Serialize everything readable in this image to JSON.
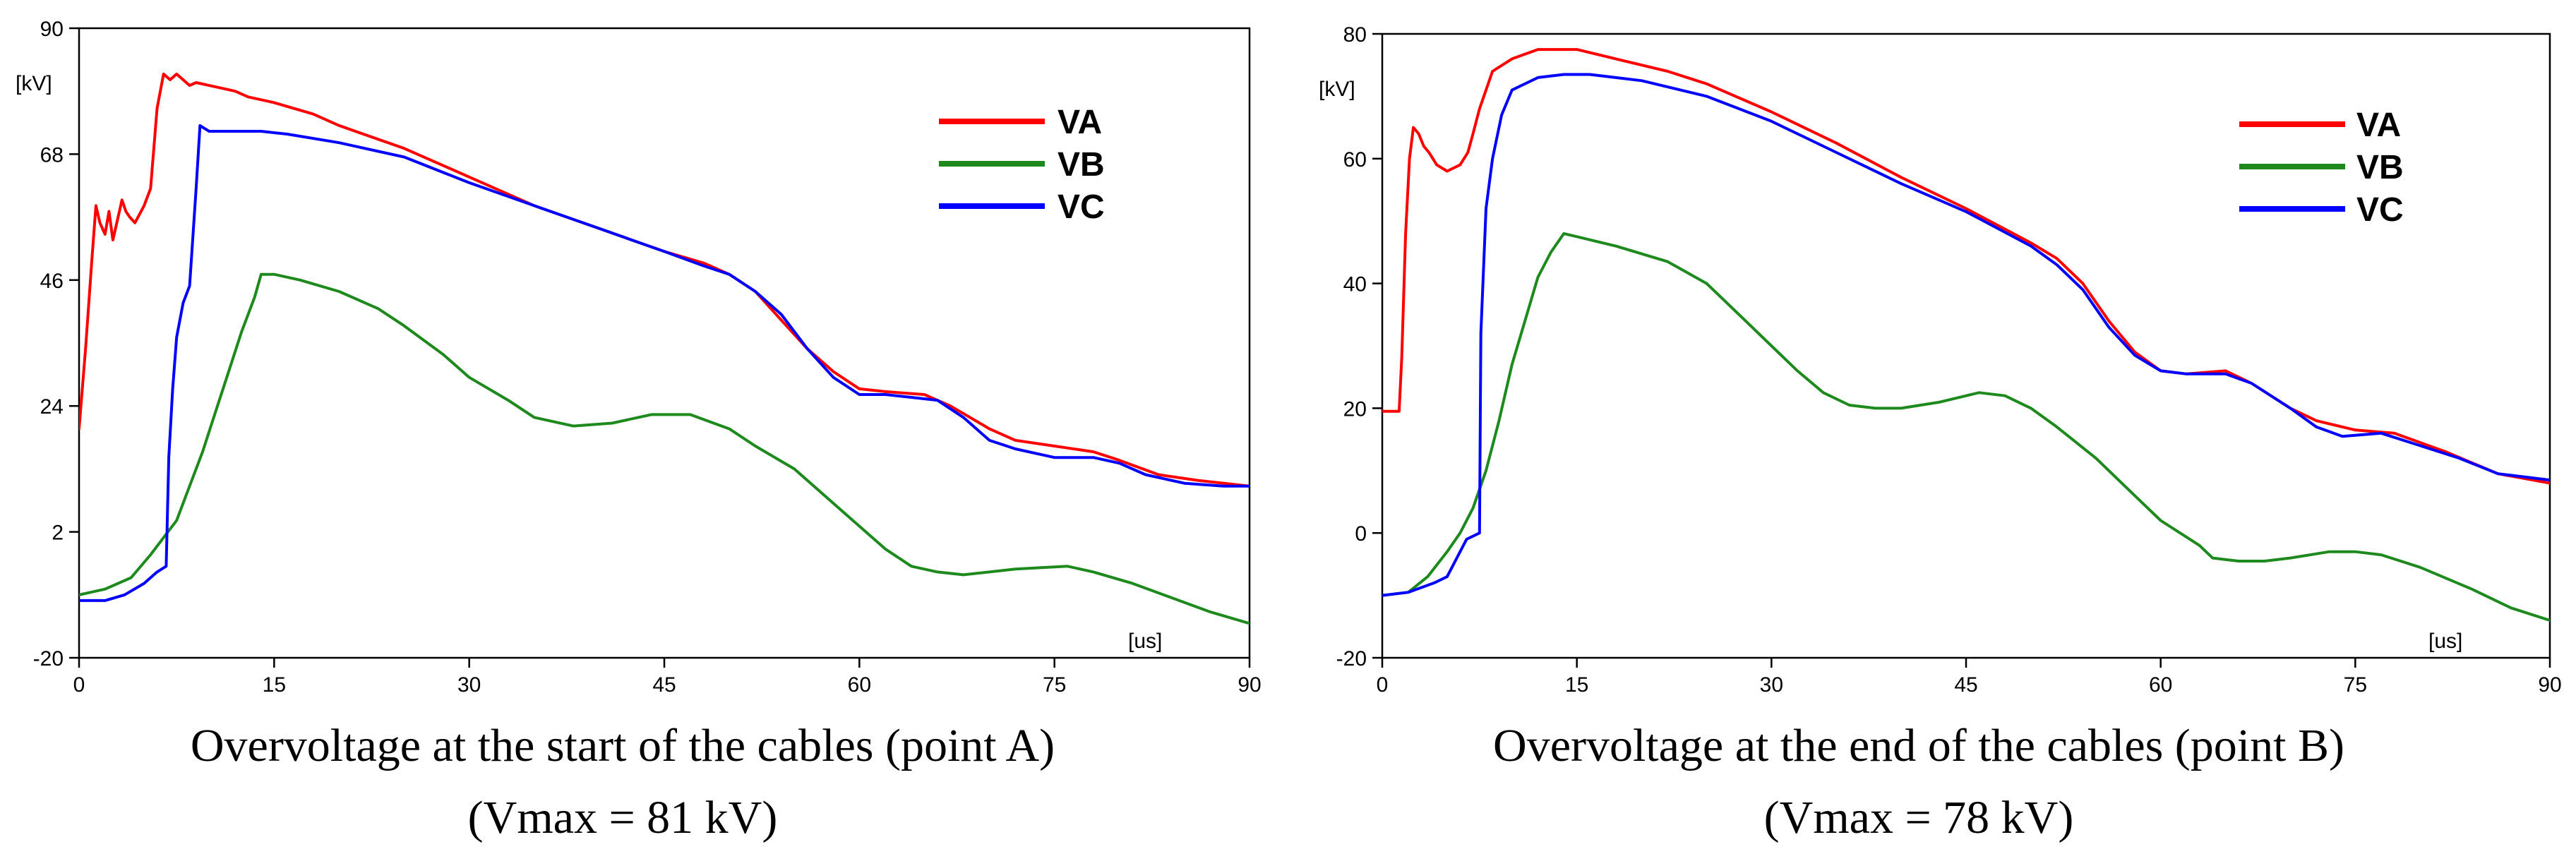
{
  "chart_data": [
    {
      "type": "line",
      "title": "Overvoltage at the start of the cables (point A)",
      "subtitle": "(Vmax = 81 kV)",
      "xlabel": "[us]",
      "ylabel": "[kV]",
      "xlim": [
        0,
        90
      ],
      "ylim": [
        -20,
        90
      ],
      "xticks": [
        0,
        15,
        30,
        45,
        60,
        75,
        90
      ],
      "yticks": [
        -20,
        2,
        24,
        46,
        68,
        90
      ],
      "grid": false,
      "legend_position": "top-right",
      "series": [
        {
          "name": "VA",
          "color": "#ff0000",
          "points": [
            [
              0,
              20
            ],
            [
              0.5,
              34
            ],
            [
              1,
              50
            ],
            [
              1.3,
              59
            ],
            [
              1.6,
              56
            ],
            [
              2,
              54
            ],
            [
              2.3,
              58
            ],
            [
              2.6,
              53
            ],
            [
              3,
              57
            ],
            [
              3.3,
              60
            ],
            [
              3.6,
              58
            ],
            [
              3.9,
              57
            ],
            [
              4.3,
              56
            ],
            [
              5,
              59
            ],
            [
              5.5,
              62
            ],
            [
              6,
              76
            ],
            [
              6.5,
              82
            ],
            [
              7,
              81
            ],
            [
              7.5,
              82
            ],
            [
              8,
              81
            ],
            [
              8.5,
              80
            ],
            [
              9,
              80.5
            ],
            [
              10,
              80
            ],
            [
              11,
              79.5
            ],
            [
              12,
              79
            ],
            [
              13,
              78
            ],
            [
              15,
              77
            ],
            [
              18,
              75
            ],
            [
              20,
              73
            ],
            [
              25,
              69
            ],
            [
              30,
              64
            ],
            [
              35,
              59
            ],
            [
              40,
              55
            ],
            [
              45,
              51
            ],
            [
              48,
              49
            ],
            [
              50,
              47
            ],
            [
              52,
              44
            ],
            [
              54,
              39
            ],
            [
              56,
              34
            ],
            [
              58,
              30
            ],
            [
              60,
              27
            ],
            [
              62,
              26.5
            ],
            [
              65,
              26
            ],
            [
              67,
              24
            ],
            [
              70,
              20
            ],
            [
              72,
              18
            ],
            [
              75,
              17
            ],
            [
              78,
              16
            ],
            [
              80,
              14.5
            ],
            [
              83,
              12
            ],
            [
              86,
              11
            ],
            [
              90,
              10
            ]
          ]
        },
        {
          "name": "VB",
          "color": "#1e8a1e",
          "points": [
            [
              0,
              -9
            ],
            [
              2,
              -8
            ],
            [
              4,
              -6
            ],
            [
              5.5,
              -2
            ],
            [
              6.5,
              1
            ],
            [
              7.5,
              4
            ],
            [
              8.5,
              10
            ],
            [
              9.5,
              16
            ],
            [
              10.5,
              23
            ],
            [
              11.5,
              30
            ],
            [
              12.5,
              37
            ],
            [
              13.5,
              43
            ],
            [
              14,
              47
            ],
            [
              15,
              47
            ],
            [
              17,
              46
            ],
            [
              20,
              44
            ],
            [
              23,
              41
            ],
            [
              25,
              38
            ],
            [
              28,
              33
            ],
            [
              30,
              29
            ],
            [
              33,
              25
            ],
            [
              35,
              22
            ],
            [
              38,
              20.5
            ],
            [
              41,
              21
            ],
            [
              44,
              22.5
            ],
            [
              47,
              22.5
            ],
            [
              50,
              20
            ],
            [
              52,
              17
            ],
            [
              55,
              13
            ],
            [
              58,
              7
            ],
            [
              60,
              3
            ],
            [
              62,
              -1
            ],
            [
              64,
              -4
            ],
            [
              66,
              -5
            ],
            [
              68,
              -5.5
            ],
            [
              72,
              -4.5
            ],
            [
              76,
              -4
            ],
            [
              78,
              -5
            ],
            [
              81,
              -7
            ],
            [
              84,
              -9.5
            ],
            [
              87,
              -12
            ],
            [
              90,
              -14
            ]
          ]
        },
        {
          "name": "VC",
          "color": "#0000ff",
          "points": [
            [
              0,
              -10
            ],
            [
              2,
              -10
            ],
            [
              3.5,
              -9
            ],
            [
              5,
              -7
            ],
            [
              6,
              -5
            ],
            [
              6.7,
              -4
            ],
            [
              6.9,
              15
            ],
            [
              7.2,
              27
            ],
            [
              7.5,
              36
            ],
            [
              8,
              42
            ],
            [
              8.5,
              45
            ],
            [
              9,
              62
            ],
            [
              9.3,
              73
            ],
            [
              10,
              72
            ],
            [
              12,
              72
            ],
            [
              14,
              72
            ],
            [
              16,
              71.5
            ],
            [
              20,
              70
            ],
            [
              25,
              67.5
            ],
            [
              30,
              63
            ],
            [
              35,
              59
            ],
            [
              40,
              55
            ],
            [
              45,
              51
            ],
            [
              48,
              48.5
            ],
            [
              50,
              47
            ],
            [
              52,
              44
            ],
            [
              54,
              40
            ],
            [
              56,
              34
            ],
            [
              58,
              29
            ],
            [
              60,
              26
            ],
            [
              62,
              26
            ],
            [
              64,
              25.5
            ],
            [
              66,
              25
            ],
            [
              68,
              22
            ],
            [
              70,
              18
            ],
            [
              72,
              16.5
            ],
            [
              75,
              15
            ],
            [
              78,
              15
            ],
            [
              80,
              14
            ],
            [
              82,
              12
            ],
            [
              85,
              10.5
            ],
            [
              88,
              10
            ],
            [
              90,
              10
            ]
          ]
        }
      ]
    },
    {
      "type": "line",
      "title": "Overvoltage at the end of the cables (point B)",
      "subtitle": "(Vmax = 78 kV)",
      "xlabel": "[us]",
      "ylabel": "[kV]",
      "xlim": [
        0,
        90
      ],
      "ylim": [
        -20,
        80
      ],
      "xticks": [
        0,
        15,
        30,
        45,
        60,
        75,
        90
      ],
      "yticks": [
        -20,
        0,
        20,
        40,
        60,
        80
      ],
      "grid": false,
      "legend_position": "top-right",
      "series": [
        {
          "name": "VA",
          "color": "#ff0000",
          "points": [
            [
              0,
              19.5
            ],
            [
              1.3,
              19.5
            ],
            [
              1.5,
              28
            ],
            [
              1.8,
              48
            ],
            [
              2.1,
              60
            ],
            [
              2.4,
              65
            ],
            [
              2.8,
              64
            ],
            [
              3.2,
              62
            ],
            [
              3.6,
              61
            ],
            [
              4.2,
              59
            ],
            [
              5,
              58
            ],
            [
              6,
              59
            ],
            [
              6.6,
              61
            ],
            [
              7,
              64
            ],
            [
              7.5,
              68
            ],
            [
              8,
              71
            ],
            [
              8.5,
              74
            ],
            [
              10,
              76
            ],
            [
              12,
              77.5
            ],
            [
              14,
              77.5
            ],
            [
              15,
              77.5
            ],
            [
              18,
              76
            ],
            [
              22,
              74
            ],
            [
              25,
              72
            ],
            [
              30,
              67.5
            ],
            [
              35,
              62.5
            ],
            [
              40,
              57
            ],
            [
              45,
              52
            ],
            [
              50,
              46.5
            ],
            [
              52,
              44
            ],
            [
              54,
              40
            ],
            [
              56,
              34
            ],
            [
              58,
              29
            ],
            [
              60,
              26
            ],
            [
              62,
              25.5
            ],
            [
              65,
              26
            ],
            [
              67,
              24
            ],
            [
              70,
              20
            ],
            [
              72,
              18
            ],
            [
              75,
              16.5
            ],
            [
              78,
              16
            ],
            [
              82,
              13
            ],
            [
              86,
              9.5
            ],
            [
              90,
              8
            ]
          ]
        },
        {
          "name": "VB",
          "color": "#1e8a1e",
          "points": [
            [
              0,
              -10
            ],
            [
              2,
              -9.5
            ],
            [
              3.5,
              -7
            ],
            [
              5,
              -3
            ],
            [
              6,
              0
            ],
            [
              7,
              4
            ],
            [
              8,
              10
            ],
            [
              9,
              18
            ],
            [
              10,
              27
            ],
            [
              11,
              34
            ],
            [
              12,
              41
            ],
            [
              13,
              45
            ],
            [
              14,
              48
            ],
            [
              15,
              47.5
            ],
            [
              18,
              46
            ],
            [
              22,
              43.5
            ],
            [
              25,
              40
            ],
            [
              28,
              34
            ],
            [
              30,
              30
            ],
            [
              32,
              26
            ],
            [
              34,
              22.5
            ],
            [
              36,
              20.5
            ],
            [
              38,
              20
            ],
            [
              40,
              20
            ],
            [
              43,
              21
            ],
            [
              46,
              22.5
            ],
            [
              48,
              22
            ],
            [
              50,
              20
            ],
            [
              52,
              17
            ],
            [
              55,
              12
            ],
            [
              58,
              6
            ],
            [
              60,
              2
            ],
            [
              63,
              -2
            ],
            [
              64,
              -4
            ],
            [
              66,
              -4.5
            ],
            [
              68,
              -4.5
            ],
            [
              70,
              -4
            ],
            [
              73,
              -3
            ],
            [
              75,
              -3
            ],
            [
              77,
              -3.5
            ],
            [
              80,
              -5.5
            ],
            [
              84,
              -9
            ],
            [
              87,
              -12
            ],
            [
              90,
              -14
            ]
          ]
        },
        {
          "name": "VC",
          "color": "#0000ff",
          "points": [
            [
              0,
              -10
            ],
            [
              2,
              -9.5
            ],
            [
              4,
              -8
            ],
            [
              5,
              -7
            ],
            [
              6.5,
              -1
            ],
            [
              7.5,
              0
            ],
            [
              7.6,
              32
            ],
            [
              8,
              52
            ],
            [
              8.5,
              60
            ],
            [
              9.2,
              67
            ],
            [
              10,
              71
            ],
            [
              12,
              73
            ],
            [
              14,
              73.5
            ],
            [
              16,
              73.5
            ],
            [
              20,
              72.5
            ],
            [
              25,
              70
            ],
            [
              30,
              66
            ],
            [
              35,
              61
            ],
            [
              40,
              56
            ],
            [
              45,
              51.5
            ],
            [
              50,
              46
            ],
            [
              52,
              43
            ],
            [
              54,
              39
            ],
            [
              56,
              33
            ],
            [
              58,
              28.5
            ],
            [
              60,
              26
            ],
            [
              62,
              25.5
            ],
            [
              65,
              25.5
            ],
            [
              67,
              24
            ],
            [
              70,
              20
            ],
            [
              72,
              17
            ],
            [
              74,
              15.5
            ],
            [
              77,
              16
            ],
            [
              80,
              14
            ],
            [
              83,
              12
            ],
            [
              86,
              9.5
            ],
            [
              90,
              8.5
            ]
          ]
        }
      ]
    }
  ]
}
